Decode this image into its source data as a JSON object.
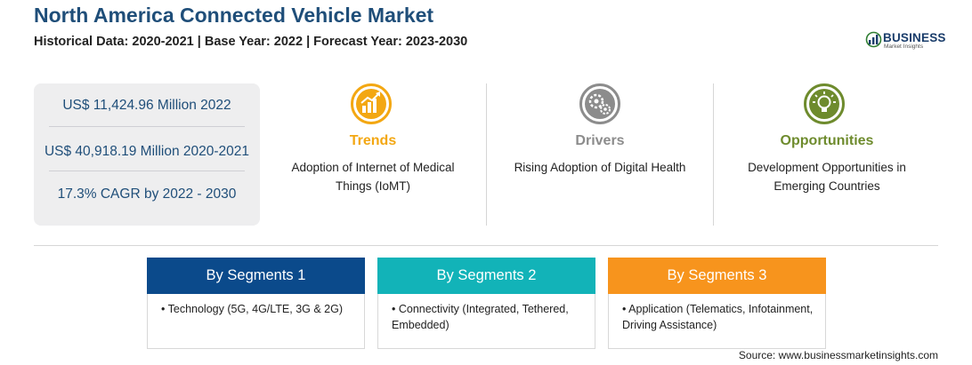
{
  "header": {
    "title": "North America Connected Vehicle Market",
    "subtitle": "Historical Data: 2020-2021 | Base Year: 2022 | Forecast Year: 2023-2030"
  },
  "logo": {
    "main": "BUSINESS",
    "sub": "Market Insights"
  },
  "stats": [
    "US$ 11,424.96 Million 2022",
    "US$ 40,918.19 Million 2020-2021",
    "17.3% CAGR by 2022 - 2030"
  ],
  "highlights": [
    {
      "title": "Trends",
      "text": "Adoption of Internet of Medical Things (IoMT)",
      "color": "#f3a712",
      "icon": "growth-chart-icon"
    },
    {
      "title": "Drivers",
      "text": "Rising Adoption of Digital Health",
      "color": "#8c8c8c",
      "icon": "gears-icon"
    },
    {
      "title": "Opportunities",
      "text": "Development Opportunities in Emerging Countries",
      "color": "#6e8b2d",
      "icon": "lightbulb-icon"
    }
  ],
  "segments": [
    {
      "title": "By Segments 1",
      "item": "• Technology (5G, 4G/LTE, 3G & 2G)",
      "color": "#0b4a8b"
    },
    {
      "title": "By Segments 2",
      "item": "• Connectivity (Integrated, Tethered, Embedded)",
      "color": "#12b3b8"
    },
    {
      "title": "By Segments 3",
      "item": "• Application (Telematics, Infotainment, Driving Assistance)",
      "color": "#f7941d"
    }
  ],
  "source": "Source: www.businessmarketinsights.com"
}
